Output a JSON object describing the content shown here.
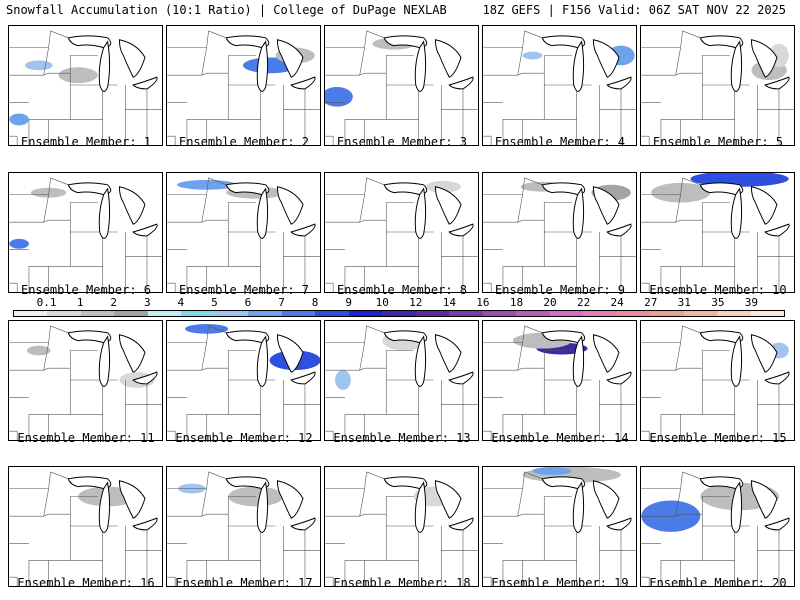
{
  "header": {
    "title": "Snowfall Accumulation (10:1 Ratio) | College of DuPage NEXLAB",
    "run": "18Z GEFS | F156 Valid: 06Z SAT NOV 22 2025"
  },
  "panels": [
    {
      "label": "Ensemble Member: 1"
    },
    {
      "label": "Ensemble Member: 2"
    },
    {
      "label": "Ensemble Member: 3"
    },
    {
      "label": "Ensemble Member: 4"
    },
    {
      "label": "Ensemble Member: 5"
    },
    {
      "label": "Ensemble Member: 6"
    },
    {
      "label": "Ensemble Member: 7"
    },
    {
      "label": "Ensemble Member: 8"
    },
    {
      "label": "Ensemble Member: 9"
    },
    {
      "label": "Ensemble Member: 10"
    },
    {
      "label": "Ensemble Member: 11"
    },
    {
      "label": "Ensemble Member: 12"
    },
    {
      "label": "Ensemble Member: 13"
    },
    {
      "label": "Ensemble Member: 14"
    },
    {
      "label": "Ensemble Member: 15"
    },
    {
      "label": "Ensemble Member: 16"
    },
    {
      "label": "Ensemble Member: 17"
    },
    {
      "label": "Ensemble Member: 18"
    },
    {
      "label": "Ensemble Member: 19"
    },
    {
      "label": "Ensemble Member: 20"
    }
  ],
  "color_scale": {
    "ticks": [
      "0.1",
      "1",
      "2",
      "3",
      "4",
      "5",
      "6",
      "7",
      "8",
      "9",
      "10",
      "12",
      "14",
      "16",
      "18",
      "20",
      "22",
      "24",
      "27",
      "31",
      "35",
      "39"
    ],
    "colors": [
      "#eeeeee",
      "#d8d8d8",
      "#bdbdbd",
      "#a3a3a3",
      "#bfeff2",
      "#7fd9e6",
      "#9fc4ef",
      "#6fa2ec",
      "#4a7be8",
      "#2f4fe0",
      "#1f1fd8",
      "#3a2aa8",
      "#5b2a9e",
      "#7a3aa6",
      "#9a4ab0",
      "#b85ab8",
      "#d070c2",
      "#e07fb6",
      "#e68fa0",
      "#e9a08f",
      "#eeb7a2",
      "#f4d0c0",
      "#f8e6dc"
    ],
    "tick_values": [
      0.1,
      1,
      2,
      3,
      4,
      5,
      6,
      7,
      8,
      9,
      10,
      12,
      14,
      16,
      18,
      20,
      22,
      24,
      27,
      31,
      35,
      39
    ]
  },
  "colors": {
    "snow_light": "#9fc4ef",
    "snow_heavy": "#2f4fe0",
    "trace": "#a3a3a3",
    "border": "#000000"
  }
}
